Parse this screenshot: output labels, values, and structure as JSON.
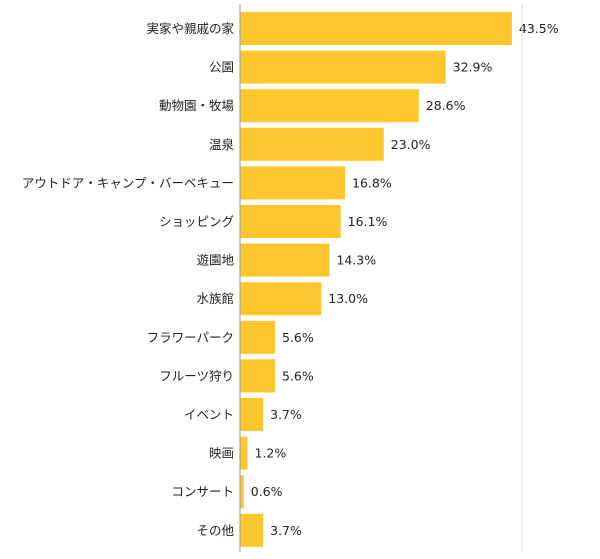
{
  "chart_data": {
    "type": "bar",
    "orientation": "horizontal",
    "categories": [
      "実家や親戚の家",
      "公園",
      "動物園・牧場",
      "温泉",
      "アウトドア・キャンプ・バーベキュー",
      "ショッピング",
      "遊園地",
      "水族館",
      "フラワーパーク",
      "フルーツ狩り",
      "イベント",
      "映画",
      "コンサート",
      "その他"
    ],
    "values": [
      43.5,
      32.9,
      28.6,
      23.0,
      16.8,
      16.1,
      14.3,
      13.0,
      5.6,
      5.6,
      3.7,
      1.2,
      0.6,
      3.7
    ],
    "value_labels": [
      "43.5%",
      "32.9%",
      "28.6%",
      "23.0%",
      "16.8%",
      "16.1%",
      "14.3%",
      "13.0%",
      "5.6%",
      "5.6%",
      "3.7%",
      "1.2%",
      "0.6%",
      "3.7%"
    ],
    "unit": "%",
    "xlim": [
      0,
      50
    ],
    "grid": false,
    "bar_color": "#FCC62C",
    "axis_color": "#999999"
  }
}
